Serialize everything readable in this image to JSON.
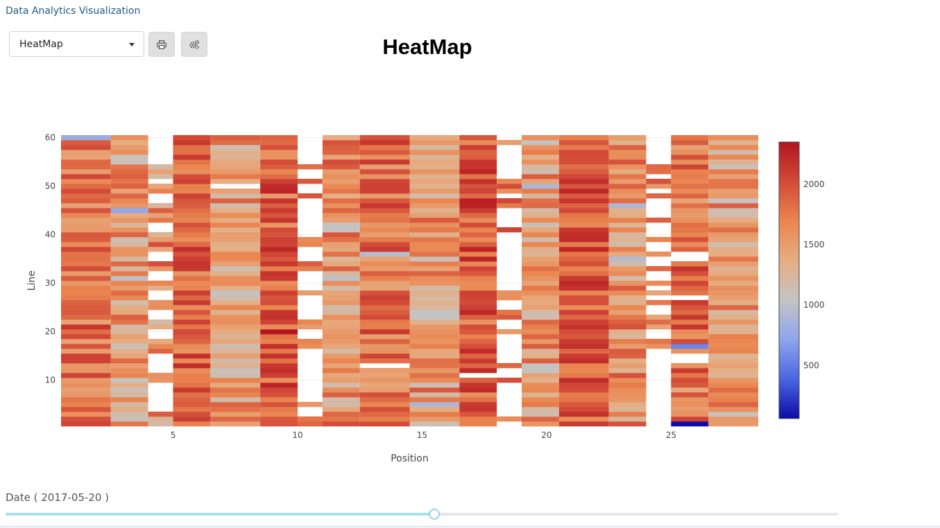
{
  "app": {
    "title": "Data Analytics Visualization"
  },
  "toolbar": {
    "chart_type_selected": "HeatMap",
    "print_icon": "print-icon",
    "settings_icon": "gears-icon"
  },
  "slider": {
    "label": "Date ( 2017-05-20 )",
    "value_fraction": 0.514
  },
  "chart_data": {
    "type": "heatmap",
    "title": "HeatMap",
    "xlabel": "Position",
    "ylabel": "Line",
    "x_range": [
      0.5,
      28.5
    ],
    "y_range": [
      0.5,
      60.5
    ],
    "x_ticks": [
      5,
      10,
      15,
      20,
      25
    ],
    "y_ticks": [
      10,
      20,
      30,
      40,
      50,
      60
    ],
    "colorbar": {
      "colorscale": [
        "#0c0ca8",
        "#4a66e0",
        "#8fa5ec",
        "#c4c4c4",
        "#e6ad82",
        "#ea8550",
        "#d24a38",
        "#b3151e"
      ],
      "range": [
        60,
        2350
      ],
      "ticks": [
        500,
        1000,
        1500,
        2000
      ]
    },
    "columns": [
      {
        "x": 1,
        "w": 2,
        "base": 1700,
        "var": 350,
        "seed": 1,
        "special": [
          [
            60,
            800
          ],
          [
            1,
            2050
          ],
          [
            2,
            2000
          ],
          [
            21,
            2150
          ]
        ]
      },
      {
        "x": 3,
        "w": 1.5,
        "base": 1450,
        "var": 420,
        "seed": 2,
        "special": [
          [
            45,
            750
          ],
          [
            31,
            1000
          ],
          [
            17,
            1100
          ]
        ]
      },
      {
        "x": 4.5,
        "w": 1,
        "base": 1550,
        "var": 420,
        "seed": 3,
        "missing": [
          4,
          5,
          6,
          7,
          8,
          9,
          12,
          13,
          14,
          15,
          19,
          20,
          23,
          24,
          27,
          28,
          31,
          32,
          35,
          36,
          41,
          42,
          47,
          48,
          51,
          55,
          56,
          57,
          58,
          59,
          60
        ]
      },
      {
        "x": 5.5,
        "w": 1.5,
        "base": 1850,
        "var": 320,
        "seed": 4,
        "special": [
          [
            33,
            2150
          ],
          [
            34,
            2150
          ],
          [
            35,
            2100
          ]
        ]
      },
      {
        "x": 7,
        "w": 2,
        "base": 1500,
        "var": 420,
        "seed": 5,
        "missing": [
          50
        ],
        "special": [
          [
            12,
            1100
          ],
          [
            28,
            1050
          ]
        ]
      },
      {
        "x": 9,
        "w": 1.5,
        "base": 1850,
        "var": 380,
        "seed": 6,
        "special": [
          [
            20,
            2350
          ],
          [
            43,
            2150
          ]
        ]
      },
      {
        "x": 10.5,
        "w": 1,
        "base": 1650,
        "var": 320,
        "seed": 7,
        "missing": [
          3,
          4,
          6,
          7,
          8,
          9,
          10,
          11,
          12,
          13,
          14,
          15,
          16,
          19,
          20,
          23,
          24,
          25,
          26,
          27,
          29,
          30,
          31,
          32,
          35,
          36,
          37,
          40,
          41,
          42,
          43,
          44,
          45,
          46,
          47,
          49,
          50,
          52,
          53,
          55,
          56,
          57,
          58,
          59,
          60
        ]
      },
      {
        "x": 11.5,
        "w": 1.5,
        "base": 1550,
        "var": 420,
        "seed": 8,
        "special": [
          [
            31,
            1000
          ],
          [
            41,
            1050
          ],
          [
            42,
            1050
          ]
        ]
      },
      {
        "x": 13,
        "w": 2,
        "base": 1750,
        "var": 360,
        "seed": 9,
        "missing": [
          13
        ],
        "special": [
          [
            36,
            950
          ],
          [
            59,
            2150
          ]
        ]
      },
      {
        "x": 15,
        "w": 2,
        "base": 1500,
        "var": 420,
        "seed": 10,
        "special": [
          [
            23,
            1050
          ],
          [
            24,
            1050
          ],
          [
            5,
            900
          ]
        ]
      },
      {
        "x": 17,
        "w": 1.5,
        "base": 1900,
        "var": 360,
        "seed": 11,
        "missing": [
          11
        ],
        "special": [
          [
            9,
            2150
          ],
          [
            54,
            2150
          ],
          [
            55,
            2150
          ]
        ]
      },
      {
        "x": 18.5,
        "w": 1,
        "base": 1750,
        "var": 300,
        "seed": 12,
        "missing": [
          1,
          3,
          4,
          5,
          6,
          7,
          8,
          9,
          11,
          12,
          14,
          15,
          16,
          17,
          18,
          19,
          21,
          22,
          25,
          26,
          29,
          30,
          31,
          32,
          33,
          34,
          35,
          36,
          37,
          38,
          39,
          40,
          42,
          43,
          44,
          45,
          48,
          52,
          53,
          54,
          55,
          56,
          57,
          58,
          60
        ]
      },
      {
        "x": 19.5,
        "w": 1.5,
        "base": 1450,
        "var": 420,
        "seed": 13,
        "special": [
          [
            12,
            1050
          ],
          [
            13,
            1050
          ],
          [
            50,
            900
          ],
          [
            59,
            1050
          ]
        ]
      },
      {
        "x": 21,
        "w": 2,
        "base": 1900,
        "var": 320,
        "seed": 14,
        "special": [
          [
            10,
            2200
          ],
          [
            39,
            2200
          ],
          [
            27,
            2000
          ],
          [
            26,
            2000
          ]
        ]
      },
      {
        "x": 23,
        "w": 1.5,
        "base": 1550,
        "var": 420,
        "seed": 15,
        "special": [
          [
            46,
            900
          ],
          [
            35,
            950
          ]
        ]
      },
      {
        "x": 24.5,
        "w": 1,
        "base": 1700,
        "var": 320,
        "seed": 16,
        "missing": [
          1,
          2,
          3,
          4,
          5,
          6,
          7,
          8,
          9,
          10,
          11,
          12,
          13,
          14,
          15,
          16,
          19,
          20,
          24,
          25,
          27,
          29,
          31,
          32,
          34,
          35,
          37,
          38,
          40,
          41,
          42,
          44,
          45,
          46,
          47,
          49,
          52,
          55,
          56,
          57,
          58,
          59,
          60
        ]
      },
      {
        "x": 25.5,
        "w": 1.5,
        "base": 1750,
        "var": 380,
        "seed": 17,
        "missing": [
          14,
          15,
          27,
          35,
          36
        ],
        "special": [
          [
            1,
            60
          ],
          [
            17,
            550
          ],
          [
            21,
            2150
          ]
        ]
      },
      {
        "x": 27,
        "w": 2,
        "base": 1450,
        "var": 420,
        "seed": 18,
        "special": [
          [
            46,
            1900
          ],
          [
            59,
            1300
          ]
        ]
      }
    ]
  }
}
